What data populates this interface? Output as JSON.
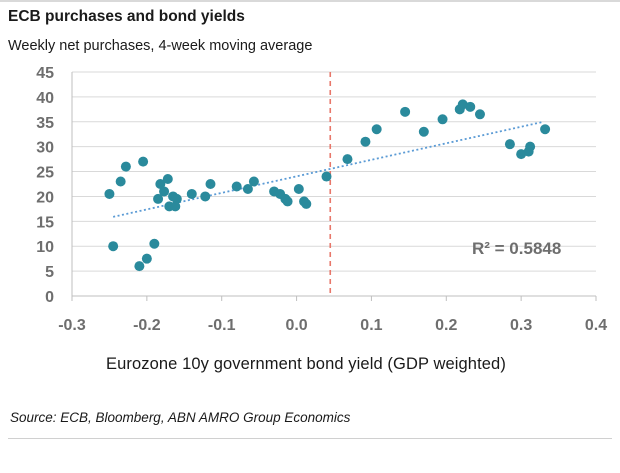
{
  "title": "ECB purchases and bond yields",
  "subtitle": "Weekly net purchases, 4-week moving average",
  "source": "Source: ECB, Bloomberg, ABN AMRO Group Economics",
  "chart_data": {
    "type": "scatter",
    "title": "ECB purchases and bond yields",
    "subtitle": "Weekly net purchases, 4-week moving average",
    "xlabel": "Eurozone 10y government bond yield (GDP weighted)",
    "ylabel": "",
    "xlim": [
      -0.3,
      0.4
    ],
    "ylim": [
      0,
      45
    ],
    "x_ticks": [
      "-0.3",
      "-0.2",
      "-0.1",
      "0.0",
      "0.1",
      "0.2",
      "0.3",
      "0.4"
    ],
    "y_ticks": [
      "0",
      "5",
      "10",
      "15",
      "20",
      "25",
      "30",
      "35",
      "40",
      "45"
    ],
    "grid": "horizontal",
    "annotation": "R² = 0.5848",
    "reference_line_x": 0.045,
    "trendline": {
      "x": [
        -0.245,
        0.33
      ],
      "y": [
        15.9,
        35.0
      ]
    },
    "colors": {
      "points": "#2a8a9c",
      "trend": "#5b9bd5",
      "refline": "#e8776a",
      "grid": "#d9d9d9"
    },
    "series": [
      {
        "points": [
          [
            -0.25,
            20.5
          ],
          [
            -0.245,
            10.0
          ],
          [
            -0.235,
            23.0
          ],
          [
            -0.228,
            26.0
          ],
          [
            -0.21,
            6.0
          ],
          [
            -0.205,
            27.0
          ],
          [
            -0.2,
            7.5
          ],
          [
            -0.19,
            10.5
          ],
          [
            -0.185,
            19.5
          ],
          [
            -0.182,
            22.5
          ],
          [
            -0.177,
            21.0
          ],
          [
            -0.172,
            23.5
          ],
          [
            -0.17,
            18.0
          ],
          [
            -0.165,
            20.0
          ],
          [
            -0.162,
            18.0
          ],
          [
            -0.16,
            19.5
          ],
          [
            -0.14,
            20.5
          ],
          [
            -0.122,
            20.0
          ],
          [
            -0.115,
            22.5
          ],
          [
            -0.08,
            22.0
          ],
          [
            -0.065,
            21.5
          ],
          [
            -0.057,
            23.0
          ],
          [
            -0.03,
            21.0
          ],
          [
            -0.022,
            20.5
          ],
          [
            -0.015,
            19.5
          ],
          [
            -0.012,
            19.0
          ],
          [
            0.003,
            21.5
          ],
          [
            0.01,
            19.0
          ],
          [
            0.013,
            18.5
          ],
          [
            0.04,
            24.0
          ],
          [
            0.068,
            27.5
          ],
          [
            0.092,
            31.0
          ],
          [
            0.107,
            33.5
          ],
          [
            0.145,
            37.0
          ],
          [
            0.17,
            33.0
          ],
          [
            0.195,
            35.5
          ],
          [
            0.218,
            37.5
          ],
          [
            0.222,
            38.5
          ],
          [
            0.232,
            38.0
          ],
          [
            0.245,
            36.5
          ],
          [
            0.285,
            30.5
          ],
          [
            0.3,
            28.5
          ],
          [
            0.31,
            29.0
          ],
          [
            0.312,
            30.0
          ],
          [
            0.332,
            33.5
          ]
        ]
      }
    ]
  }
}
